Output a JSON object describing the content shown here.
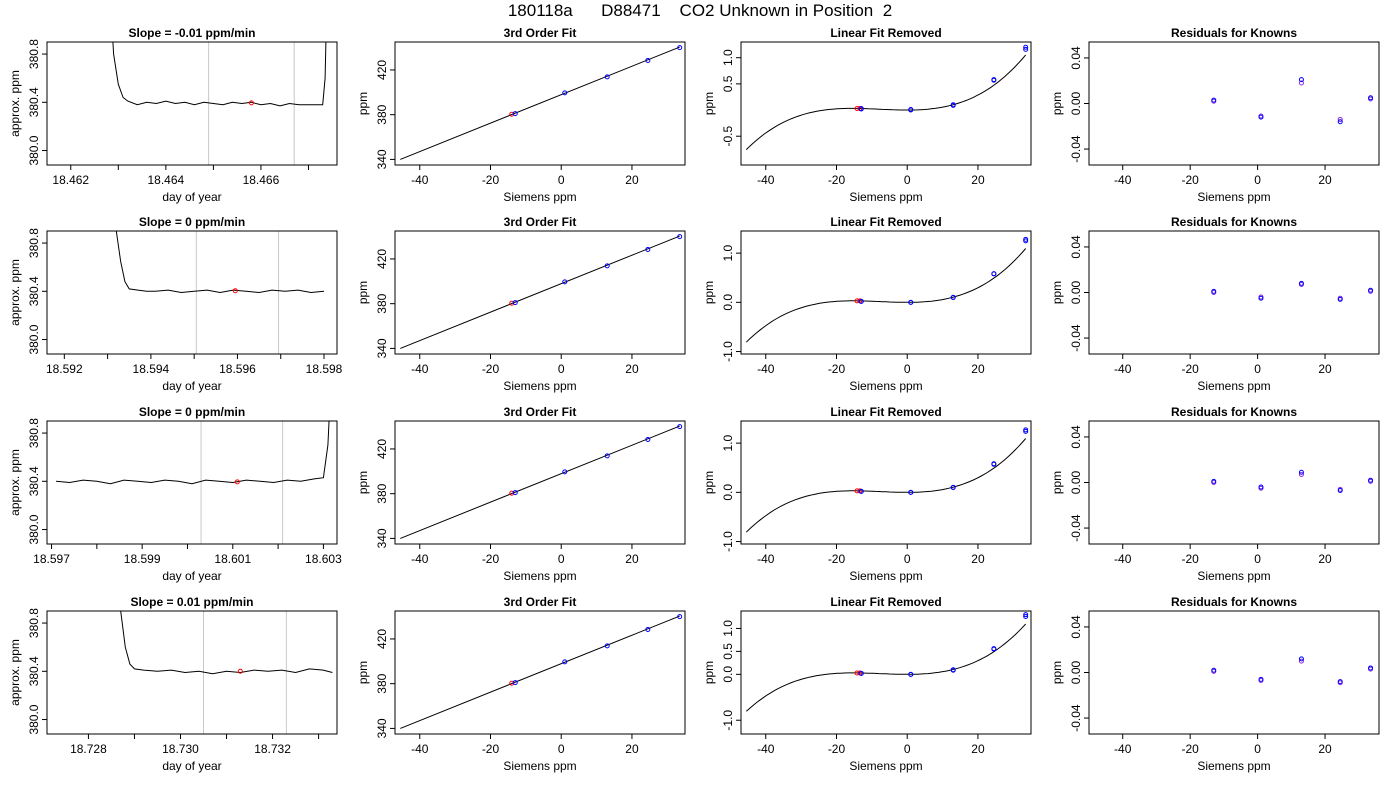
{
  "figure": {
    "title": "180118a      D88471    CO2 Unknown in Position  2"
  },
  "colors": {
    "trace": "#000000",
    "gridline": "#c8c8c8",
    "known": "#0000ff",
    "unknown": "#ff0000",
    "residual_a": "#8a2be2",
    "residual_b": "#0000ff"
  },
  "chart_data": [
    {
      "type": "line",
      "title": "Slope =  -0.01  ppm/min",
      "xlabel": "day of year",
      "ylabel": "approx. ppm",
      "xlim": [
        18.4615,
        18.4676
      ],
      "ylim": [
        379.88,
        380.9
      ],
      "xticks": [
        18.462,
        18.463,
        18.464,
        18.465,
        18.466,
        18.467
      ],
      "xtick_labels": [
        "18.462",
        "",
        "18.464",
        "",
        "18.466",
        ""
      ],
      "yticks": [
        380.0,
        380.4,
        380.8
      ],
      "ytick_labels": [
        "380.0",
        "380.4",
        "380.8"
      ],
      "vlines": [
        18.4649,
        18.4667
      ],
      "x": [
        18.4628,
        18.4629,
        18.463,
        18.4631,
        18.4632,
        18.4634,
        18.4636,
        18.4638,
        18.464,
        18.4642,
        18.4644,
        18.4646,
        18.4648,
        18.465,
        18.4652,
        18.4654,
        18.4656,
        18.4658,
        18.466,
        18.4662,
        18.4664,
        18.4666,
        18.4668,
        18.467,
        18.4672,
        18.4673,
        18.46735,
        18.4674
      ],
      "y": [
        381.5,
        380.8,
        380.55,
        380.44,
        380.41,
        380.38,
        380.4,
        380.39,
        380.41,
        380.39,
        380.4,
        380.38,
        380.4,
        380.39,
        380.38,
        380.4,
        380.39,
        380.4,
        380.38,
        380.39,
        380.37,
        380.39,
        380.38,
        380.38,
        380.38,
        380.38,
        380.6,
        381.5
      ],
      "markers": [
        {
          "x": 18.4658,
          "y": 380.395,
          "color": "#ff0000"
        }
      ]
    },
    {
      "type": "scatter",
      "title": "3rd Order Fit",
      "xlabel": "Siemens ppm",
      "ylabel": "ppm",
      "xlim": [
        -47,
        35
      ],
      "ylim": [
        335,
        445
      ],
      "xticks": [
        -40,
        -20,
        0,
        20
      ],
      "xtick_labels": [
        "-40",
        "-20",
        "0",
        "20"
      ],
      "yticks": [
        340,
        380,
        420
      ],
      "ytick_labels": [
        "340",
        "380",
        "420"
      ],
      "line": {
        "x": [
          -45.5,
          33.5
        ],
        "y": [
          340,
          440.5
        ]
      },
      "known_points": {
        "x": [
          -13,
          1,
          13,
          24.5,
          33.5
        ],
        "y": [
          381,
          399.5,
          413.8,
          428.5,
          440
        ]
      },
      "unknown_points": {
        "x": [
          -14
        ],
        "y": [
          380.4
        ]
      }
    },
    {
      "type": "scatter",
      "title": "Linear Fit Removed",
      "xlabel": "Siemens ppm",
      "ylabel": "ppm",
      "xlim": [
        -47,
        35
      ],
      "ylim": [
        -1.05,
        1.3
      ],
      "xticks": [
        -40,
        -20,
        0,
        20
      ],
      "xtick_labels": [
        "-40",
        "-20",
        "0",
        "20"
      ],
      "yticks": [
        -0.5,
        0.5,
        1.0
      ],
      "ytick_labels": [
        "-0.5",
        "0.5",
        "1.0"
      ],
      "curve": {
        "a": 1.65e-05,
        "b": 0.000386,
        "c": 0.0,
        "d": 0.0,
        "x_start": -45.5,
        "x_end": 33.5
      },
      "known_points": {
        "x": [
          -13,
          -13,
          1,
          1,
          13,
          13,
          24.5,
          24.5,
          33.5,
          33.5
        ],
        "y": [
          0.03,
          0.02,
          0.01,
          0.0,
          0.09,
          0.1,
          0.57,
          0.58,
          1.16,
          1.2
        ]
      },
      "unknown_points": {
        "x": [
          -14.2,
          -13.4
        ],
        "y": [
          0.03,
          0.03
        ]
      }
    },
    {
      "type": "scatter",
      "title": "Residuals for Knowns",
      "xlabel": "Siemens ppm",
      "ylabel": "ppm",
      "xlim": [
        -50,
        36
      ],
      "ylim": [
        -0.054,
        0.054
      ],
      "xticks": [
        -40,
        -20,
        0,
        20
      ],
      "xtick_labels": [
        "-40",
        "-20",
        "0",
        "20"
      ],
      "yticks": [
        -0.04,
        0.0,
        0.04
      ],
      "ytick_labels": [
        "-0.04",
        "0.00",
        "0.04"
      ],
      "points_a": {
        "x": [
          -13,
          1,
          13,
          24.5,
          33.5
        ],
        "y": [
          0.002,
          -0.011,
          0.018,
          -0.014,
          0.004
        ]
      },
      "points_b": {
        "x": [
          -13,
          1,
          13,
          24.5,
          33.5
        ],
        "y": [
          0.003,
          -0.012,
          0.021,
          -0.016,
          0.005
        ]
      }
    },
    {
      "type": "line",
      "title": "Slope =  0  ppm/min",
      "xlabel": "day of year",
      "ylabel": "approx. ppm",
      "xlim": [
        18.5916,
        18.5983
      ],
      "ylim": [
        379.88,
        380.9
      ],
      "xticks": [
        18.592,
        18.593,
        18.594,
        18.595,
        18.596,
        18.597,
        18.598
      ],
      "xtick_labels": [
        "18.592",
        "",
        "18.594",
        "",
        "18.596",
        "",
        "18.598"
      ],
      "yticks": [
        380.0,
        380.4,
        380.8
      ],
      "ytick_labels": [
        "380.0",
        "380.4",
        "380.8"
      ],
      "vlines": [
        18.59505,
        18.59695
      ],
      "x": [
        18.5931,
        18.5932,
        18.5933,
        18.5934,
        18.5935,
        18.5937,
        18.5939,
        18.5941,
        18.5944,
        18.5947,
        18.595,
        18.5953,
        18.5956,
        18.5959,
        18.5962,
        18.5965,
        18.5968,
        18.5971,
        18.5974,
        18.5977,
        18.598
      ],
      "y": [
        381.5,
        380.9,
        380.65,
        380.48,
        380.42,
        380.41,
        380.4,
        380.4,
        380.41,
        380.39,
        380.4,
        380.41,
        380.39,
        380.41,
        380.4,
        380.39,
        380.41,
        380.4,
        380.41,
        380.39,
        380.4
      ],
      "markers": [
        {
          "x": 18.59595,
          "y": 380.405,
          "color": "#ff0000"
        }
      ]
    },
    {
      "type": "scatter",
      "title": "3rd Order Fit",
      "xlabel": "Siemens ppm",
      "ylabel": "ppm",
      "xlim": [
        -47,
        35
      ],
      "ylim": [
        335,
        445
      ],
      "xticks": [
        -40,
        -20,
        0,
        20
      ],
      "xtick_labels": [
        "-40",
        "-20",
        "0",
        "20"
      ],
      "yticks": [
        340,
        380,
        420
      ],
      "ytick_labels": [
        "340",
        "380",
        "420"
      ],
      "line": {
        "x": [
          -45.5,
          33.5
        ],
        "y": [
          340,
          440.5
        ]
      },
      "known_points": {
        "x": [
          -13,
          1,
          13,
          24.5,
          33.5
        ],
        "y": [
          381,
          399.5,
          413.8,
          428.5,
          440
        ]
      },
      "unknown_points": {
        "x": [
          -14
        ],
        "y": [
          380.4
        ]
      }
    },
    {
      "type": "scatter",
      "title": "Linear Fit Removed",
      "xlabel": "Siemens ppm",
      "ylabel": "ppm",
      "xlim": [
        -47,
        35
      ],
      "ylim": [
        -1.05,
        1.45
      ],
      "xticks": [
        -40,
        -20,
        0,
        20
      ],
      "xtick_labels": [
        "-40",
        "-20",
        "0",
        "20"
      ],
      "yticks": [
        -1.0,
        0.0,
        1.0
      ],
      "ytick_labels": [
        "-1.0",
        "0.0",
        "1.0"
      ],
      "curve": {
        "a": 1.73e-05,
        "b": 0.000396,
        "c": 0.0,
        "d": 0.0,
        "x_start": -45.5,
        "x_end": 33.5
      },
      "known_points": {
        "x": [
          -13,
          -13,
          1,
          1,
          13,
          13,
          24.5,
          24.5,
          33.5,
          33.5
        ],
        "y": [
          0.02,
          0.02,
          0.0,
          0.0,
          0.1,
          0.1,
          0.58,
          0.58,
          1.25,
          1.28
        ]
      },
      "unknown_points": {
        "x": [
          -14.2,
          -13.4
        ],
        "y": [
          0.03,
          0.03
        ]
      }
    },
    {
      "type": "scatter",
      "title": "Residuals for Knowns",
      "xlabel": "Siemens ppm",
      "ylabel": "ppm",
      "xlim": [
        -50,
        36
      ],
      "ylim": [
        -0.054,
        0.054
      ],
      "xticks": [
        -40,
        -20,
        0,
        20
      ],
      "xtick_labels": [
        "-40",
        "-20",
        "0",
        "20"
      ],
      "yticks": [
        -0.04,
        0.0,
        0.04
      ],
      "ytick_labels": [
        "-0.04",
        "0.00",
        "0.04"
      ],
      "points_a": {
        "x": [
          -13,
          1,
          13,
          24.5,
          33.5
        ],
        "y": [
          0.0,
          -0.004,
          0.007,
          -0.005,
          0.001
        ]
      },
      "points_b": {
        "x": [
          -13,
          1,
          13,
          24.5,
          33.5
        ],
        "y": [
          0.001,
          -0.005,
          0.008,
          -0.006,
          0.002
        ]
      }
    },
    {
      "type": "line",
      "title": "Slope =  0  ppm/min",
      "xlabel": "day of year",
      "ylabel": "approx. ppm",
      "xlim": [
        18.5969,
        18.6033
      ],
      "ylim": [
        379.88,
        380.9
      ],
      "xticks": [
        18.597,
        18.598,
        18.599,
        18.6,
        18.601,
        18.602,
        18.603
      ],
      "xtick_labels": [
        "18.597",
        "",
        "18.599",
        "",
        "18.601",
        "",
        "18.603"
      ],
      "yticks": [
        380.0,
        380.4,
        380.8
      ],
      "ytick_labels": [
        "380.0",
        "380.4",
        "380.8"
      ],
      "vlines": [
        18.6003,
        18.6021
      ],
      "x": [
        18.5971,
        18.5974,
        18.5977,
        18.598,
        18.5983,
        18.5986,
        18.5989,
        18.5992,
        18.5995,
        18.5998,
        18.6001,
        18.6004,
        18.6007,
        18.601,
        18.6013,
        18.6016,
        18.6019,
        18.6022,
        18.6025,
        18.6028,
        18.603,
        18.6031,
        18.6032
      ],
      "y": [
        380.4,
        380.39,
        380.41,
        380.4,
        380.38,
        380.41,
        380.4,
        380.39,
        380.41,
        380.4,
        380.38,
        380.41,
        380.4,
        380.39,
        380.41,
        380.4,
        380.39,
        380.41,
        380.4,
        380.42,
        380.43,
        380.7,
        381.5
      ],
      "markers": [
        {
          "x": 18.6011,
          "y": 380.395,
          "color": "#ff0000"
        }
      ]
    },
    {
      "type": "scatter",
      "title": "3rd Order Fit",
      "xlabel": "Siemens ppm",
      "ylabel": "ppm",
      "xlim": [
        -47,
        35
      ],
      "ylim": [
        335,
        445
      ],
      "xticks": [
        -40,
        -20,
        0,
        20
      ],
      "xtick_labels": [
        "-40",
        "-20",
        "0",
        "20"
      ],
      "yticks": [
        340,
        380,
        420
      ],
      "ytick_labels": [
        "340",
        "380",
        "420"
      ],
      "line": {
        "x": [
          -45.5,
          33.5
        ],
        "y": [
          340,
          440.5
        ]
      },
      "known_points": {
        "x": [
          -13,
          1,
          13,
          24.5,
          33.5
        ],
        "y": [
          381,
          399.5,
          413.8,
          428.5,
          440
        ]
      },
      "unknown_points": {
        "x": [
          -14
        ],
        "y": [
          380.4
        ]
      }
    },
    {
      "type": "scatter",
      "title": "Linear Fit Removed",
      "xlabel": "Siemens ppm",
      "ylabel": "ppm",
      "xlim": [
        -47,
        35
      ],
      "ylim": [
        -1.05,
        1.45
      ],
      "xticks": [
        -40,
        -20,
        0,
        20
      ],
      "xtick_labels": [
        "-40",
        "-20",
        "0",
        "20"
      ],
      "yticks": [
        -1.0,
        0.0,
        1.0
      ],
      "ytick_labels": [
        "-1.0",
        "0.0",
        "1.0"
      ],
      "curve": {
        "a": 1.73e-05,
        "b": 0.000396,
        "c": 0.0,
        "d": 0.0,
        "x_start": -45.5,
        "x_end": 33.5
      },
      "known_points": {
        "x": [
          -13,
          -13,
          1,
          1,
          13,
          13,
          24.5,
          24.5,
          33.5,
          33.5
        ],
        "y": [
          0.02,
          0.02,
          0.0,
          0.0,
          0.1,
          0.1,
          0.57,
          0.58,
          1.24,
          1.27
        ]
      },
      "unknown_points": {
        "x": [
          -14.2,
          -13.4
        ],
        "y": [
          0.03,
          0.03
        ]
      }
    },
    {
      "type": "scatter",
      "title": "Residuals for Knowns",
      "xlabel": "Siemens ppm",
      "ylabel": "ppm",
      "xlim": [
        -50,
        36
      ],
      "ylim": [
        -0.054,
        0.054
      ],
      "xticks": [
        -40,
        -20,
        0,
        20
      ],
      "xtick_labels": [
        "-40",
        "-20",
        "0",
        "20"
      ],
      "yticks": [
        -0.04,
        0.0,
        0.04
      ],
      "ytick_labels": [
        "-0.04",
        "0.00",
        "0.04"
      ],
      "points_a": {
        "x": [
          -13,
          1,
          13,
          24.5,
          33.5
        ],
        "y": [
          0.0,
          -0.005,
          0.007,
          -0.006,
          0.001
        ]
      },
      "points_b": {
        "x": [
          -13,
          1,
          13,
          24.5,
          33.5
        ],
        "y": [
          0.001,
          -0.004,
          0.009,
          -0.007,
          0.002
        ]
      }
    },
    {
      "type": "line",
      "title": "Slope =  0.01  ppm/min",
      "xlabel": "day of year",
      "ylabel": "approx. ppm",
      "xlim": [
        18.7271,
        18.7334
      ],
      "ylim": [
        379.88,
        380.9
      ],
      "xticks": [
        18.728,
        18.729,
        18.73,
        18.731,
        18.732,
        18.733
      ],
      "xtick_labels": [
        "18.728",
        "",
        "18.730",
        "",
        "18.732",
        ""
      ],
      "yticks": [
        380.0,
        380.4,
        380.8
      ],
      "ytick_labels": [
        "380.0",
        "380.4",
        "380.8"
      ],
      "vlines": [
        18.7305,
        18.7323
      ],
      "x": [
        18.7286,
        18.7287,
        18.7288,
        18.7289,
        18.729,
        18.7292,
        18.7295,
        18.7298,
        18.7301,
        18.7304,
        18.7307,
        18.731,
        18.7313,
        18.7316,
        18.7319,
        18.7322,
        18.7325,
        18.7328,
        18.7331,
        18.7333
      ],
      "y": [
        381.5,
        380.9,
        380.6,
        380.46,
        380.42,
        380.41,
        380.4,
        380.41,
        380.39,
        380.4,
        380.38,
        380.4,
        380.39,
        380.41,
        380.4,
        380.41,
        380.39,
        380.42,
        380.41,
        380.39
      ],
      "markers": [
        {
          "x": 18.7313,
          "y": 380.4,
          "color": "#ff0000"
        }
      ]
    },
    {
      "type": "scatter",
      "title": "3rd Order Fit",
      "xlabel": "Siemens ppm",
      "ylabel": "ppm",
      "xlim": [
        -47,
        35
      ],
      "ylim": [
        335,
        445
      ],
      "xticks": [
        -40,
        -20,
        0,
        20
      ],
      "xtick_labels": [
        "-40",
        "-20",
        "0",
        "20"
      ],
      "yticks": [
        340,
        380,
        420
      ],
      "ytick_labels": [
        "340",
        "380",
        "420"
      ],
      "line": {
        "x": [
          -45.5,
          33.5
        ],
        "y": [
          340,
          440.5
        ]
      },
      "known_points": {
        "x": [
          -13,
          1,
          13,
          24.5,
          33.5
        ],
        "y": [
          381,
          399.5,
          413.8,
          428.5,
          440
        ]
      },
      "unknown_points": {
        "x": [
          -14
        ],
        "y": [
          380.4
        ]
      }
    },
    {
      "type": "scatter",
      "title": "Linear Fit Removed",
      "xlabel": "Siemens ppm",
      "ylabel": "ppm",
      "xlim": [
        -47,
        35
      ],
      "ylim": [
        -1.3,
        1.38
      ],
      "xticks": [
        -40,
        -20,
        0,
        20
      ],
      "xtick_labels": [
        "-40",
        "-20",
        "0",
        "20"
      ],
      "yticks": [
        -1.0,
        0.0,
        0.5,
        1.0
      ],
      "ytick_labels": [
        "-1.0",
        "0.0",
        "0.5",
        "1.0"
      ],
      "curve": {
        "a": 1.73e-05,
        "b": 0.000398,
        "c": 0.0,
        "d": 0.0,
        "x_start": -45.5,
        "x_end": 33.5
      },
      "known_points": {
        "x": [
          -13,
          -13,
          1,
          1,
          13,
          13,
          24.5,
          24.5,
          33.5,
          33.5
        ],
        "y": [
          0.02,
          0.02,
          0.0,
          0.0,
          0.09,
          0.1,
          0.55,
          0.56,
          1.26,
          1.3
        ]
      },
      "unknown_points": {
        "x": [
          -14.2,
          -13.4
        ],
        "y": [
          0.03,
          0.03
        ]
      }
    },
    {
      "type": "scatter",
      "title": "Residuals for Knowns",
      "xlabel": "Siemens ppm",
      "ylabel": "ppm",
      "xlim": [
        -50,
        36
      ],
      "ylim": [
        -0.054,
        0.054
      ],
      "xticks": [
        -40,
        -20,
        0,
        20
      ],
      "xtick_labels": [
        "-40",
        "-20",
        "0",
        "20"
      ],
      "yticks": [
        -0.04,
        0.0,
        0.04
      ],
      "ytick_labels": [
        "-0.04",
        "0.00",
        "0.04"
      ],
      "points_a": {
        "x": [
          -13,
          1,
          13,
          24.5,
          33.5
        ],
        "y": [
          0.001,
          -0.007,
          0.01,
          -0.009,
          0.003
        ]
      },
      "points_b": {
        "x": [
          -13,
          1,
          13,
          24.5,
          33.5
        ],
        "y": [
          0.002,
          -0.006,
          0.012,
          -0.008,
          0.004
        ]
      }
    }
  ]
}
